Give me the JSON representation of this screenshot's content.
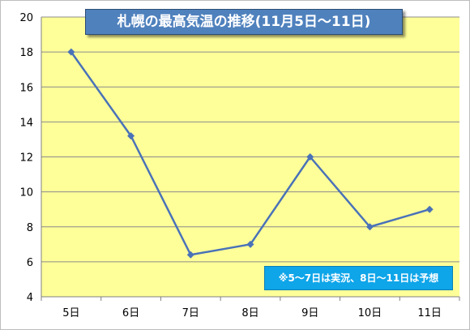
{
  "chart_data": {
    "type": "line",
    "title": "札幌の最高気温の推移(11月5日～11日)",
    "categories": [
      "5日",
      "6日",
      "7日",
      "8日",
      "9日",
      "10日",
      "11日"
    ],
    "series": [
      {
        "values": [
          18,
          13.2,
          6.4,
          7,
          12,
          8,
          9
        ]
      }
    ],
    "xlabel": "",
    "ylabel": "",
    "ylim": [
      4,
      20
    ],
    "yticks": [
      4,
      6,
      8,
      10,
      12,
      14,
      16,
      18,
      20
    ],
    "grid": "horizontal",
    "legend": "none",
    "annotation": "※5～7日は実況、8日～11日は予想"
  },
  "colors": {
    "plot_background": "#ffff99",
    "line": "#4a72b8",
    "gridline": "#8c8c8c",
    "title_background": "#4f81bd",
    "annotation_background": "#0ea5e9"
  }
}
